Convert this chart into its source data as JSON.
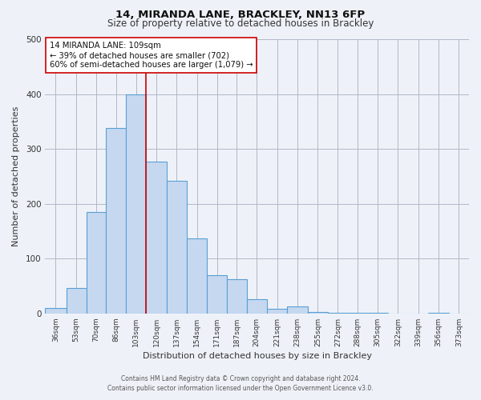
{
  "title1": "14, MIRANDA LANE, BRACKLEY, NN13 6FP",
  "title2": "Size of property relative to detached houses in Brackley",
  "xlabel": "Distribution of detached houses by size in Brackley",
  "ylabel": "Number of detached properties",
  "bin_labels": [
    "36sqm",
    "53sqm",
    "70sqm",
    "86sqm",
    "103sqm",
    "120sqm",
    "137sqm",
    "154sqm",
    "171sqm",
    "187sqm",
    "204sqm",
    "221sqm",
    "238sqm",
    "255sqm",
    "272sqm",
    "288sqm",
    "305sqm",
    "322sqm",
    "339sqm",
    "356sqm",
    "373sqm"
  ],
  "bin_edges": [
    27,
    44.5,
    61.5,
    78,
    94.5,
    111.5,
    128.5,
    145.5,
    162.5,
    179,
    195.5,
    212.5,
    229.5,
    246.5,
    263.5,
    280,
    296.5,
    313.5,
    330.5,
    347.5,
    364.5,
    381.5
  ],
  "counts": [
    10,
    47,
    185,
    338,
    400,
    277,
    242,
    137,
    70,
    63,
    26,
    8,
    13,
    2,
    1,
    1,
    1,
    0,
    0,
    1,
    0
  ],
  "bar_facecolor": "#c5d8f0",
  "bar_edgecolor": "#5a9fd4",
  "vline_x": 111.5,
  "vline_color": "#cc0000",
  "annotation_title": "14 MIRANDA LANE: 109sqm",
  "annotation_line1": "← 39% of detached houses are smaller (702)",
  "annotation_line2": "60% of semi-detached houses are larger (1,079) →",
  "annotation_box_edgecolor": "#cc0000",
  "annotation_box_facecolor": "#ffffff",
  "ylim": [
    0,
    500
  ],
  "background_color": "#eef2f8",
  "footer1": "Contains HM Land Registry data © Crown copyright and database right 2024.",
  "footer2": "Contains public sector information licensed under the Open Government Licence v3.0."
}
